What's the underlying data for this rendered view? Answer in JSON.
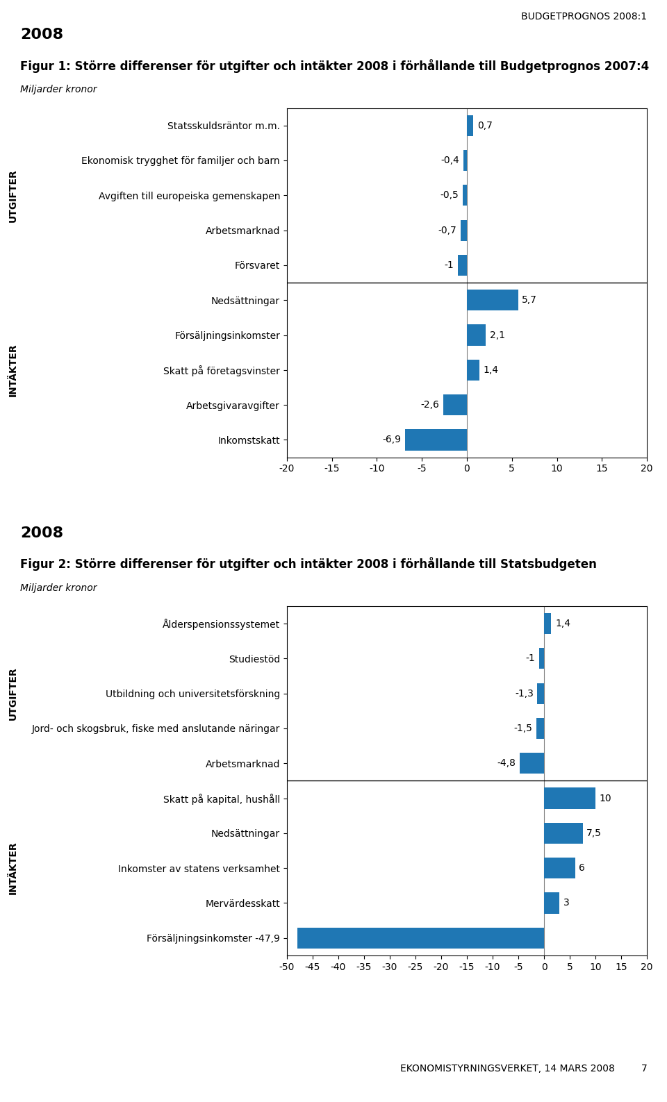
{
  "page_header": "BUDGETPROGNOS 2008:1",
  "page_footer": "EKONOMISTYRNINGSVERKET, 14 MARS 2008",
  "page_number": "7",
  "chart_data": [
    {
      "type": "bar",
      "orientation": "horizontal",
      "data_labels": true,
      "annotations": [
        "2008"
      ],
      "title": "Figur 1: Större differenser för utgifter och intäkter 2008 i förhållande till Budgetprognos 2007:4",
      "subtitle": "Miljarder kronor",
      "xlim": [
        -20,
        20
      ],
      "xticks": [
        -20,
        -15,
        -10,
        -5,
        0,
        5,
        10,
        15,
        20
      ],
      "color": "#1f77b4",
      "groups": [
        {
          "name": "UTGIFTER",
          "categories": [
            "Statsskuldsräntor m.m.",
            "Ekonomisk trygghet för familjer och barn",
            "Avgiften till europeiska gemenskapen",
            "Arbetsmarknad",
            "Försvaret"
          ],
          "values": [
            0.7,
            -0.4,
            -0.5,
            -0.7,
            -1.0
          ],
          "value_labels": [
            "0,7",
            "-0,4",
            "-0,5",
            "-0,7",
            "-1"
          ]
        },
        {
          "name": "INTÄKTER",
          "categories": [
            "Nedsättningar",
            "Försäljningsinkomster",
            "Skatt på företagsvinster",
            "Arbetsgivaravgifter",
            "Inkomstskatt"
          ],
          "values": [
            5.7,
            2.1,
            1.4,
            -2.6,
            -6.9
          ],
          "value_labels": [
            "5,7",
            "2,1",
            "1,4",
            "-2,6",
            "-6,9"
          ]
        }
      ]
    },
    {
      "type": "bar",
      "orientation": "horizontal",
      "data_labels": true,
      "annotations": [
        "2008"
      ],
      "title": "Figur 2: Större differenser för utgifter och intäkter 2008 i förhållande till Statsbudgeten",
      "subtitle": "Miljarder kronor",
      "xlim": [
        -50,
        20
      ],
      "xticks": [
        -50,
        -45,
        -40,
        -35,
        -30,
        -25,
        -20,
        -15,
        -10,
        -5,
        0,
        5,
        10,
        15,
        20
      ],
      "color": "#1f77b4",
      "groups": [
        {
          "name": "UTGIFTER",
          "categories": [
            "Ålderspensionssystemet",
            "Studiestöd",
            "Utbildning och universitetsförskning",
            "Jord- och skogsbruk, fiske med anslutande näringar",
            "Arbetsmarknad"
          ],
          "values": [
            1.4,
            -1.0,
            -1.3,
            -1.5,
            -4.8
          ],
          "value_labels": [
            "1,4",
            "-1",
            "-1,3",
            "-1,5",
            "-4,8"
          ]
        },
        {
          "name": "INTÄKTER",
          "categories": [
            "Skatt på kapital, hushåll",
            "Nedsättningar",
            "Inkomster av statens verksamhet",
            "Mervärdesskatt",
            "Försäljningsinkomster -47,9"
          ],
          "values": [
            10.0,
            7.5,
            6.0,
            3.0,
            -47.9
          ],
          "value_labels": [
            "10",
            "7,5",
            "6",
            "3",
            null
          ]
        }
      ]
    }
  ]
}
